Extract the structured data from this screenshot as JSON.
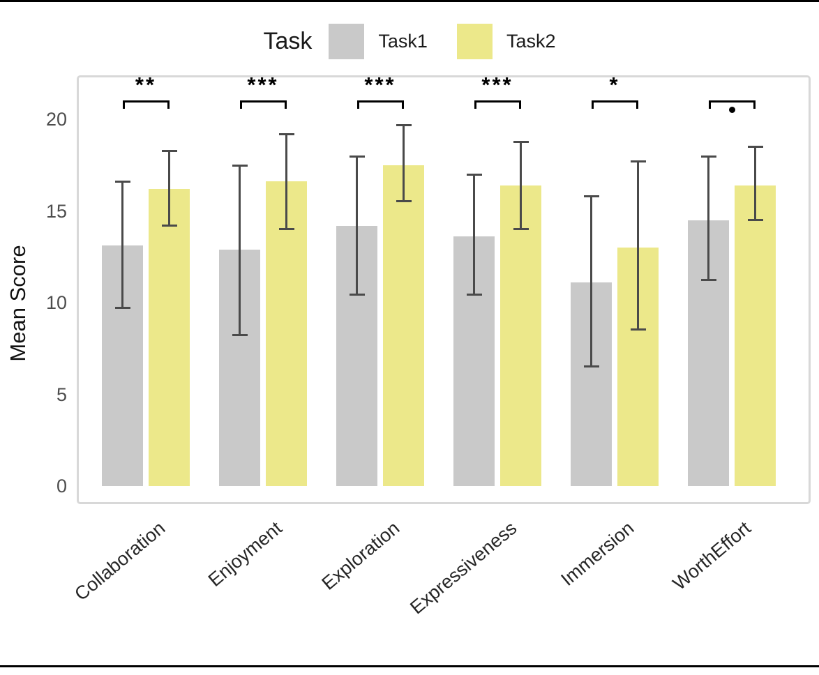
{
  "legend": {
    "title": "Task",
    "items": [
      {
        "label": "Task1",
        "color": "#c9c9c9"
      },
      {
        "label": "Task2",
        "color": "#ece88a"
      }
    ]
  },
  "chart_data": {
    "type": "bar",
    "title": "",
    "xlabel": "",
    "ylabel": "Mean Score",
    "ylim": [
      0,
      20
    ],
    "yticks": [
      0,
      5,
      10,
      15,
      20
    ],
    "grid": false,
    "legend_position": "top",
    "categories": [
      "Collaboration",
      "Enjoyment",
      "Exploration",
      "Expressiveness",
      "Immersion",
      "WorthEffort"
    ],
    "series": [
      {
        "name": "Task1",
        "color": "#c9c9c9",
        "values": [
          13.1,
          12.9,
          14.2,
          13.6,
          11.1,
          14.5
        ],
        "error_low": [
          9.7,
          8.2,
          10.4,
          10.4,
          6.5,
          11.2
        ],
        "error_high": [
          16.6,
          17.5,
          18.0,
          17.0,
          15.8,
          18.0
        ]
      },
      {
        "name": "Task2",
        "color": "#ece88a",
        "values": [
          16.2,
          16.6,
          17.5,
          16.4,
          13.0,
          16.4
        ],
        "error_low": [
          14.2,
          14.0,
          15.5,
          14.0,
          8.5,
          14.5
        ],
        "error_high": [
          18.3,
          19.2,
          19.7,
          18.8,
          17.7,
          18.5
        ]
      }
    ],
    "significance": [
      "**",
      "***",
      "***",
      "***",
      "*",
      "·"
    ],
    "error_bar_color": "#4a4a4a"
  }
}
